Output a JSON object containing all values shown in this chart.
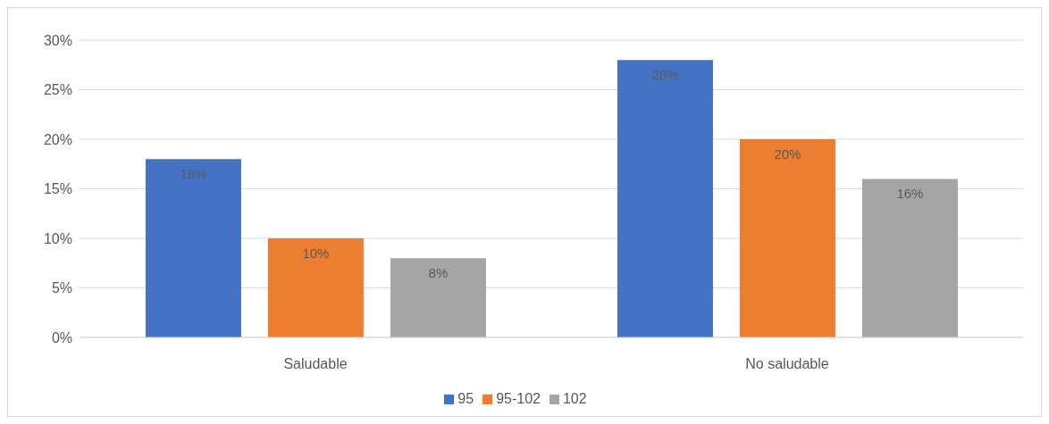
{
  "chart_data": {
    "type": "bar",
    "categories": [
      "Saludable",
      "No saludable"
    ],
    "series": [
      {
        "name": "95",
        "color": "#4472c4",
        "values": [
          18,
          28
        ],
        "value_labels": [
          "18%",
          "28%"
        ]
      },
      {
        "name": "95-102",
        "color": "#ed7d31",
        "values": [
          10,
          20
        ],
        "value_labels": [
          "10%",
          "20%"
        ]
      },
      {
        "name": "102",
        "color": "#a5a5a5",
        "values": [
          8,
          16
        ],
        "value_labels": [
          "8%",
          "16%"
        ]
      }
    ],
    "ylim": [
      0,
      30
    ],
    "yticks": [
      {
        "value": 0,
        "label": "0%"
      },
      {
        "value": 5,
        "label": "5%"
      },
      {
        "value": 10,
        "label": "10%"
      },
      {
        "value": 15,
        "label": "15%"
      },
      {
        "value": 20,
        "label": "20%"
      },
      {
        "value": 25,
        "label": "25%"
      },
      {
        "value": 30,
        "label": "30%"
      }
    ],
    "grid": "y",
    "legend": "bottom"
  }
}
